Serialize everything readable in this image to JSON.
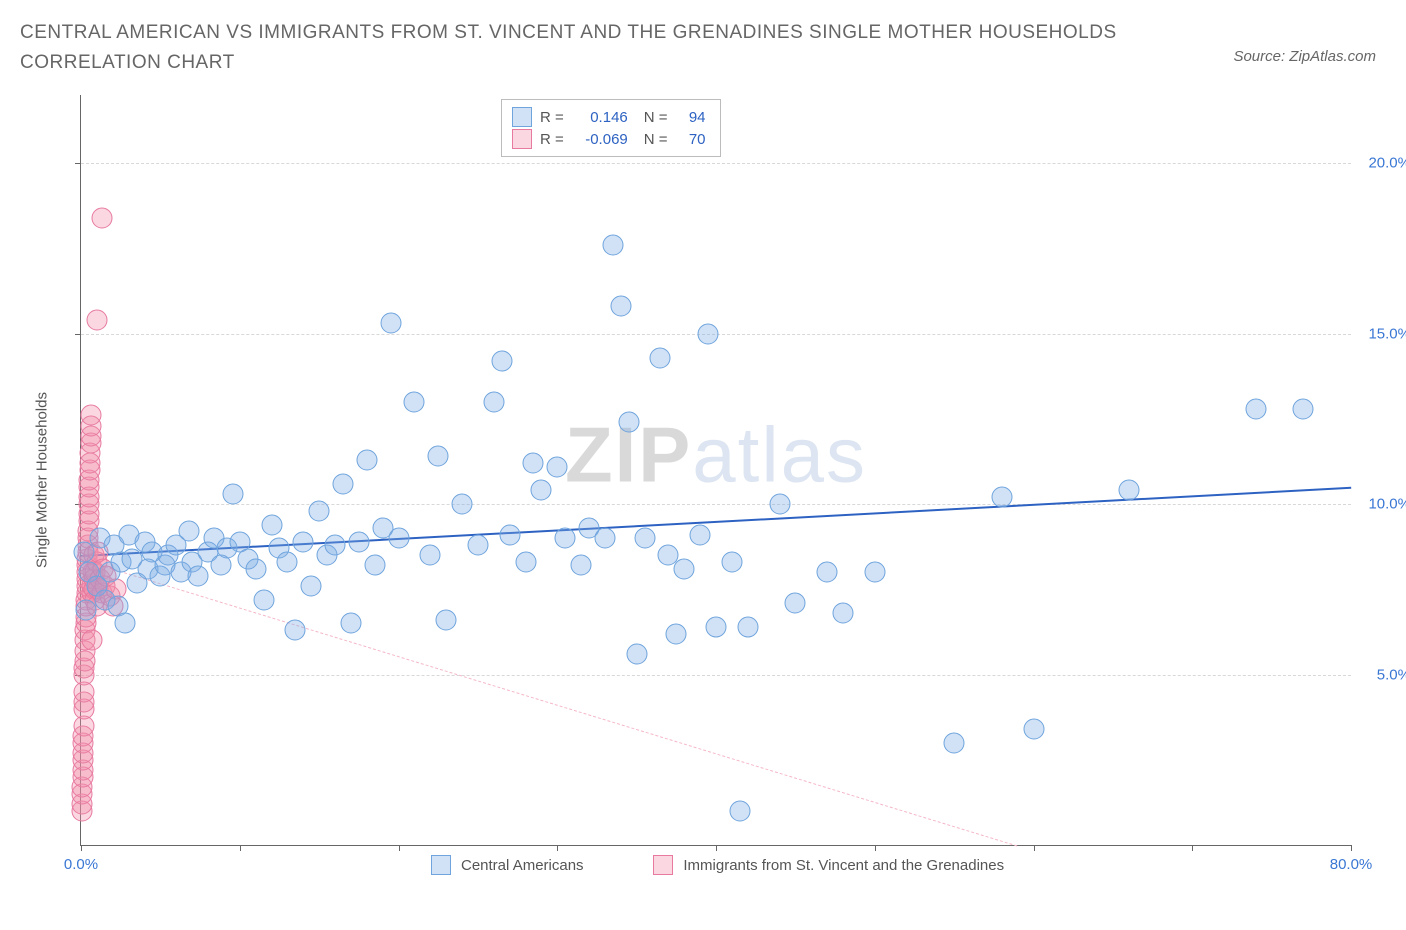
{
  "title": "CENTRAL AMERICAN VS IMMIGRANTS FROM ST. VINCENT AND THE GRENADINES SINGLE MOTHER HOUSEHOLDS CORRELATION CHART",
  "source": "Source: ZipAtlas.com",
  "watermark_a": "ZIP",
  "watermark_b": "atlas",
  "chart": {
    "type": "scatter",
    "background_color": "#ffffff",
    "grid_color": "#d8d8d8",
    "axis_color": "#666666",
    "text_color": "#555555",
    "tick_label_color": "#3a77d4",
    "tick_fontsize": 15,
    "title_fontsize": 19,
    "title_color": "#666666",
    "marker_radius": 9.5,
    "marker_stroke_width": 1.3,
    "ylabel": "Single Mother Households",
    "xlim": [
      0,
      80
    ],
    "ylim": [
      0,
      22
    ],
    "xticks": [
      0,
      10,
      20,
      30,
      40,
      50,
      60,
      70,
      80
    ],
    "xtick_labels": {
      "0": "0.0%",
      "80": "80.0%"
    },
    "yticks": [
      5,
      10,
      15,
      20
    ],
    "ytick_labels": {
      "5": "5.0%",
      "10": "10.0%",
      "15": "15.0%",
      "20": "20.0%"
    },
    "series": [
      {
        "name": "Central Americans",
        "fill_color": "rgba(122,171,230,0.35)",
        "stroke_color": "#6fa4dd",
        "r_value": "0.146",
        "n_value": "94",
        "trend": {
          "color": "#2d62c2",
          "width": 2.5,
          "dash": "solid",
          "y_at_xmin": 8.5,
          "y_at_xmax": 10.5
        },
        "points": [
          [
            0.2,
            8.6
          ],
          [
            0.3,
            6.9
          ],
          [
            0.5,
            8.0
          ],
          [
            1.0,
            7.6
          ],
          [
            1.2,
            9.0
          ],
          [
            1.5,
            7.2
          ],
          [
            1.8,
            8.0
          ],
          [
            2.1,
            8.8
          ],
          [
            2.3,
            7.0
          ],
          [
            2.5,
            8.3
          ],
          [
            2.8,
            6.5
          ],
          [
            3.0,
            9.1
          ],
          [
            3.2,
            8.4
          ],
          [
            3.5,
            7.7
          ],
          [
            4.0,
            8.9
          ],
          [
            4.2,
            8.1
          ],
          [
            4.5,
            8.6
          ],
          [
            5.0,
            7.9
          ],
          [
            5.3,
            8.2
          ],
          [
            5.5,
            8.5
          ],
          [
            6.0,
            8.8
          ],
          [
            6.3,
            8.0
          ],
          [
            6.8,
            9.2
          ],
          [
            7.0,
            8.3
          ],
          [
            7.4,
            7.9
          ],
          [
            8.0,
            8.6
          ],
          [
            8.4,
            9.0
          ],
          [
            8.8,
            8.2
          ],
          [
            9.2,
            8.7
          ],
          [
            9.6,
            10.3
          ],
          [
            10.0,
            8.9
          ],
          [
            10.5,
            8.4
          ],
          [
            11.0,
            8.1
          ],
          [
            11.5,
            7.2
          ],
          [
            12.0,
            9.4
          ],
          [
            12.5,
            8.7
          ],
          [
            13.0,
            8.3
          ],
          [
            13.5,
            6.3
          ],
          [
            14.0,
            8.9
          ],
          [
            14.5,
            7.6
          ],
          [
            15.0,
            9.8
          ],
          [
            15.5,
            8.5
          ],
          [
            16.0,
            8.8
          ],
          [
            16.5,
            10.6
          ],
          [
            17.0,
            6.5
          ],
          [
            17.5,
            8.9
          ],
          [
            18.0,
            11.3
          ],
          [
            18.5,
            8.2
          ],
          [
            19.0,
            9.3
          ],
          [
            19.5,
            15.3
          ],
          [
            20.0,
            9.0
          ],
          [
            21.0,
            13.0
          ],
          [
            22.0,
            8.5
          ],
          [
            22.5,
            11.4
          ],
          [
            23.0,
            6.6
          ],
          [
            24.0,
            10.0
          ],
          [
            25.0,
            8.8
          ],
          [
            26.0,
            13.0
          ],
          [
            26.5,
            14.2
          ],
          [
            27.0,
            9.1
          ],
          [
            28.0,
            8.3
          ],
          [
            28.5,
            11.2
          ],
          [
            29.0,
            10.4
          ],
          [
            30.0,
            11.1
          ],
          [
            30.5,
            9.0
          ],
          [
            31.5,
            8.2
          ],
          [
            32.0,
            9.3
          ],
          [
            33.0,
            9.0
          ],
          [
            33.5,
            17.6
          ],
          [
            34.0,
            15.8
          ],
          [
            34.5,
            12.4
          ],
          [
            35.0,
            5.6
          ],
          [
            35.5,
            9.0
          ],
          [
            36.5,
            14.3
          ],
          [
            37.0,
            8.5
          ],
          [
            37.5,
            6.2
          ],
          [
            38.0,
            8.1
          ],
          [
            39.0,
            9.1
          ],
          [
            39.5,
            15.0
          ],
          [
            40.0,
            6.4
          ],
          [
            41.0,
            8.3
          ],
          [
            41.5,
            1.0
          ],
          [
            42.0,
            6.4
          ],
          [
            44.0,
            10.0
          ],
          [
            45.0,
            7.1
          ],
          [
            47.0,
            8.0
          ],
          [
            48.0,
            6.8
          ],
          [
            50.0,
            8.0
          ],
          [
            55.0,
            3.0
          ],
          [
            58.0,
            10.2
          ],
          [
            60.0,
            3.4
          ],
          [
            66.0,
            10.4
          ],
          [
            74.0,
            12.8
          ],
          [
            77.0,
            12.8
          ]
        ]
      },
      {
        "name": "Immigrants from St. Vincent and the Grenadines",
        "fill_color": "rgba(240,140,170,0.35)",
        "stroke_color": "#e87aa0",
        "r_value": "-0.069",
        "n_value": "70",
        "trend": {
          "color": "#f5b8c8",
          "width": 1.5,
          "dash": "dashed",
          "y_at_xmin": 8.4,
          "y_at_xmax": -3.0
        },
        "points": [
          [
            0.05,
            1.0
          ],
          [
            0.05,
            1.2
          ],
          [
            0.08,
            1.5
          ],
          [
            0.08,
            1.7
          ],
          [
            0.1,
            2.0
          ],
          [
            0.1,
            2.2
          ],
          [
            0.12,
            2.5
          ],
          [
            0.12,
            2.7
          ],
          [
            0.15,
            3.0
          ],
          [
            0.15,
            3.2
          ],
          [
            0.18,
            3.5
          ],
          [
            0.18,
            4.0
          ],
          [
            0.2,
            4.2
          ],
          [
            0.2,
            4.5
          ],
          [
            0.22,
            5.0
          ],
          [
            0.22,
            5.2
          ],
          [
            0.25,
            5.4
          ],
          [
            0.25,
            5.7
          ],
          [
            0.28,
            6.0
          ],
          [
            0.28,
            6.3
          ],
          [
            0.3,
            6.5
          ],
          [
            0.3,
            6.7
          ],
          [
            0.32,
            7.0
          ],
          [
            0.32,
            7.2
          ],
          [
            0.35,
            7.4
          ],
          [
            0.35,
            7.6
          ],
          [
            0.38,
            7.8
          ],
          [
            0.38,
            8.0
          ],
          [
            0.4,
            8.2
          ],
          [
            0.4,
            8.4
          ],
          [
            0.42,
            8.6
          ],
          [
            0.42,
            8.8
          ],
          [
            0.45,
            9.0
          ],
          [
            0.45,
            9.2
          ],
          [
            0.48,
            9.5
          ],
          [
            0.48,
            9.7
          ],
          [
            0.5,
            10.0
          ],
          [
            0.5,
            10.2
          ],
          [
            0.52,
            10.5
          ],
          [
            0.52,
            10.7
          ],
          [
            0.55,
            11.0
          ],
          [
            0.55,
            11.2
          ],
          [
            0.58,
            11.5
          ],
          [
            0.6,
            11.8
          ],
          [
            0.6,
            12.0
          ],
          [
            0.62,
            12.3
          ],
          [
            0.65,
            12.6
          ],
          [
            0.68,
            7.4
          ],
          [
            0.7,
            7.6
          ],
          [
            0.7,
            6.0
          ],
          [
            0.75,
            8.0
          ],
          [
            0.8,
            7.5
          ],
          [
            0.8,
            8.5
          ],
          [
            0.85,
            7.8
          ],
          [
            0.9,
            7.2
          ],
          [
            0.9,
            8.0
          ],
          [
            1.0,
            7.0
          ],
          [
            1.0,
            8.3
          ],
          [
            1.1,
            7.5
          ],
          [
            1.1,
            8.6
          ],
          [
            1.2,
            7.8
          ],
          [
            1.3,
            7.4
          ],
          [
            1.4,
            8.1
          ],
          [
            1.5,
            7.6
          ],
          [
            1.6,
            7.9
          ],
          [
            1.0,
            15.4
          ],
          [
            1.3,
            18.4
          ],
          [
            1.8,
            7.3
          ],
          [
            2.0,
            7.0
          ],
          [
            2.2,
            7.5
          ]
        ]
      }
    ],
    "legend_stats": {
      "r_label": "R =",
      "n_label": "N ="
    },
    "bottom_legend_left_x": 350
  }
}
